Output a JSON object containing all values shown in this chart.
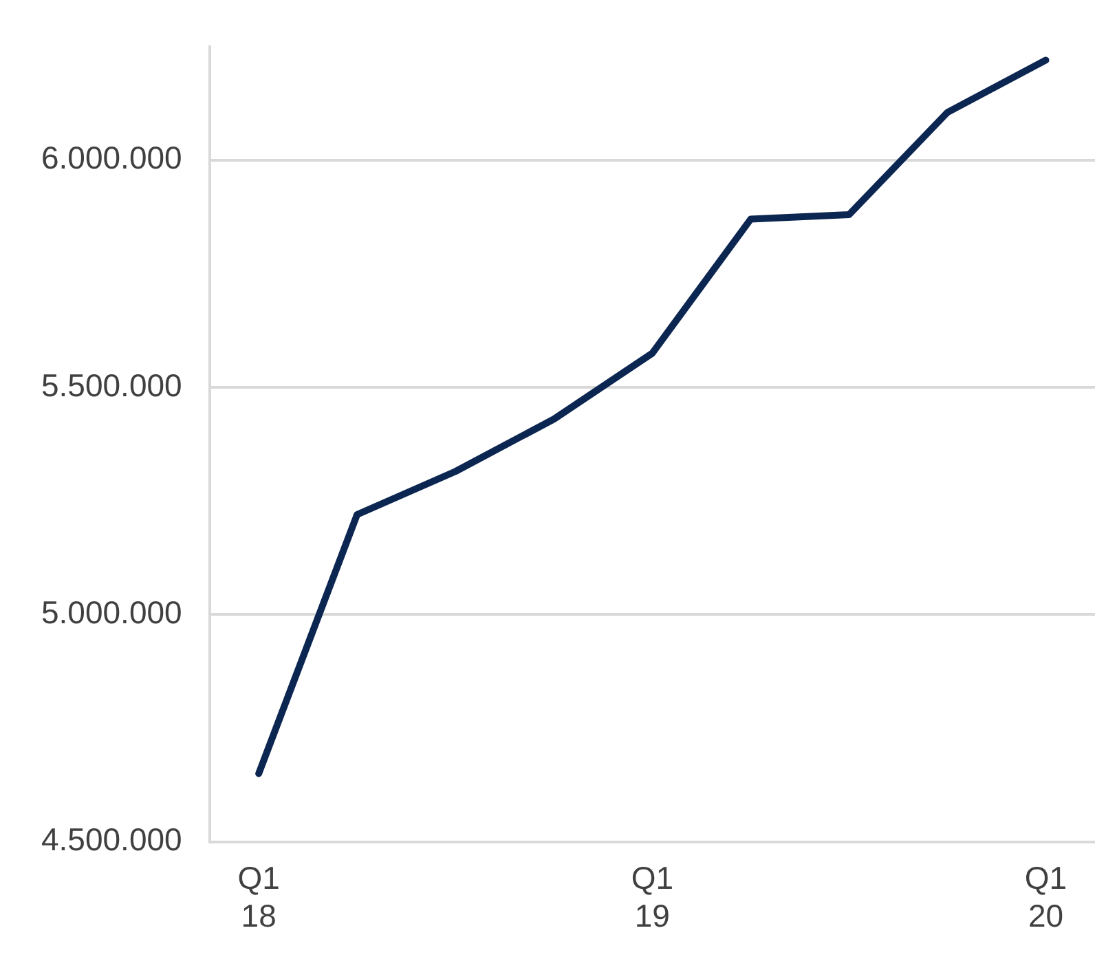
{
  "chart_data": {
    "type": "line",
    "categories": [
      "Q1\n18",
      null,
      null,
      null,
      "Q1\n19",
      null,
      null,
      null,
      "Q1\n20"
    ],
    "series": [
      {
        "color": "#0b2651",
        "values": [
          4650000,
          5220000,
          5315000,
          5430000,
          5575000,
          5870000,
          5880000,
          6105000,
          6220000
        ]
      }
    ],
    "ylim": [
      4500000,
      6250000
    ],
    "yticks": [
      {
        "value": 4500000,
        "label": "4.500.000"
      },
      {
        "value": 5000000,
        "label": "5.000.000"
      },
      {
        "value": 5500000,
        "label": "5.500.000"
      },
      {
        "value": 6000000,
        "label": "6.000.000"
      }
    ],
    "grid": "y",
    "legend": false,
    "marker": "none",
    "line_style": "solid"
  }
}
